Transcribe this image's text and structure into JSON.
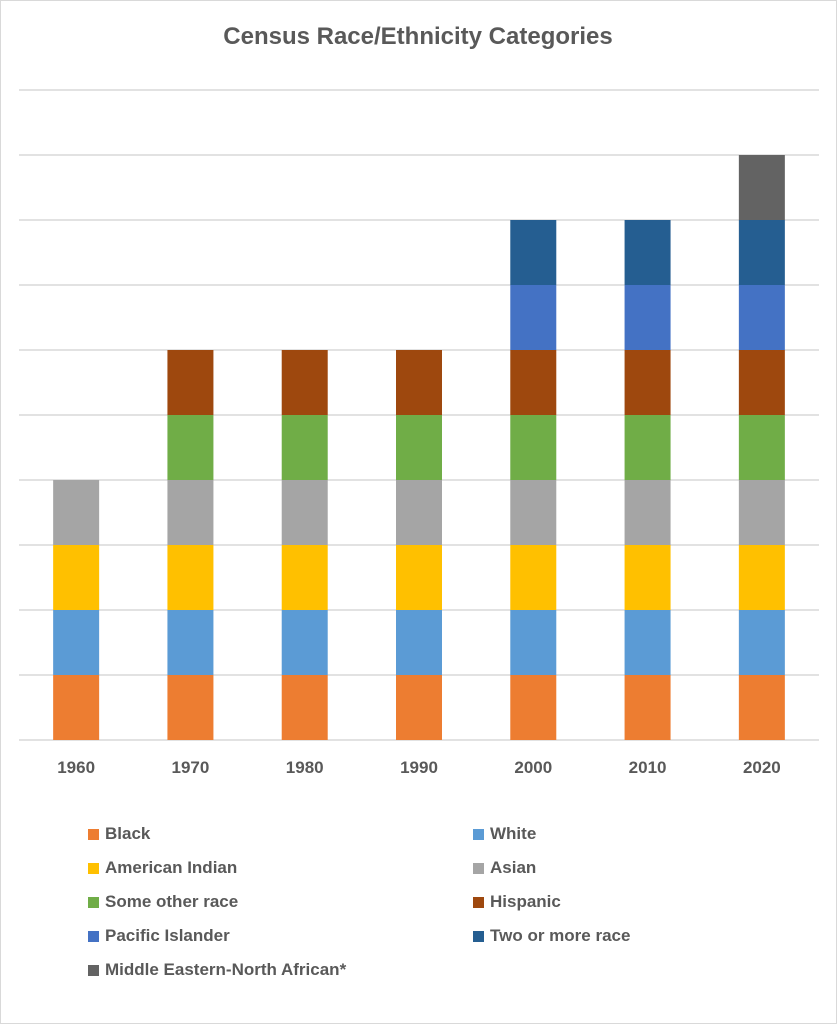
{
  "chart_data": {
    "type": "bar",
    "stacked": true,
    "title": "Census Race/Ethnicity Categories",
    "xlabel": "",
    "ylabel": "",
    "ylim": [
      0,
      10
    ],
    "grid": true,
    "legend_position": "bottom",
    "categories": [
      "1960",
      "1970",
      "1980",
      "1990",
      "2000",
      "2010",
      "2020"
    ],
    "series": [
      {
        "name": "Black",
        "color": "#ED7D31",
        "values": [
          1,
          1,
          1,
          1,
          1,
          1,
          1
        ]
      },
      {
        "name": "White",
        "color": "#5B9BD5",
        "values": [
          1,
          1,
          1,
          1,
          1,
          1,
          1
        ]
      },
      {
        "name": "American Indian",
        "color": "#FFC000",
        "values": [
          1,
          1,
          1,
          1,
          1,
          1,
          1
        ]
      },
      {
        "name": "Asian",
        "color": "#A5A5A5",
        "values": [
          1,
          1,
          1,
          1,
          1,
          1,
          1
        ]
      },
      {
        "name": "Some other race",
        "color": "#70AD47",
        "values": [
          0,
          1,
          1,
          1,
          1,
          1,
          1
        ]
      },
      {
        "name": "Hispanic",
        "color": "#9E480E",
        "values": [
          0,
          1,
          1,
          1,
          1,
          1,
          1
        ]
      },
      {
        "name": "Pacific Islander",
        "color": "#4472C4",
        "values": [
          0,
          0,
          0,
          0,
          1,
          1,
          1
        ]
      },
      {
        "name": "Two or more race",
        "color": "#255E91",
        "values": [
          0,
          0,
          0,
          0,
          1,
          1,
          1
        ]
      },
      {
        "name": "Middle Eastern-North African*",
        "color": "#636363",
        "values": [
          0,
          0,
          0,
          0,
          0,
          0,
          1
        ]
      }
    ]
  }
}
